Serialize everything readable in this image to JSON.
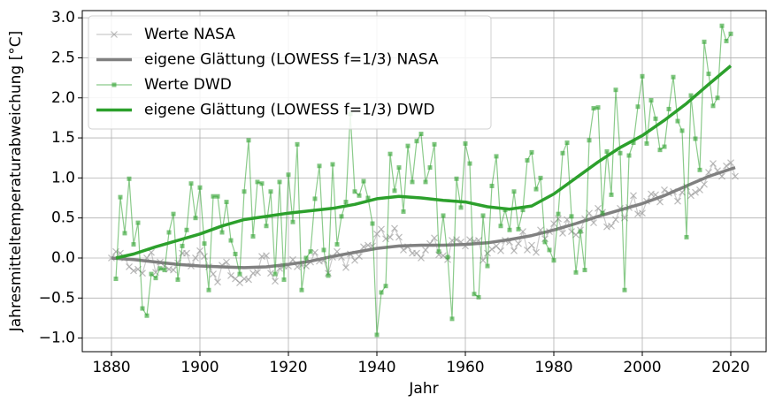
{
  "chart_data": {
    "type": "line",
    "xlabel": "Jahr",
    "ylabel": "Jahresmitteltemperaturabweichung [°C]",
    "xlim": [
      1873.4,
      2028
    ],
    "ylim": [
      -1.17,
      3.09
    ],
    "xticks": [
      1880,
      1900,
      1920,
      1940,
      1960,
      1980,
      2000,
      2020
    ],
    "yticks": [
      {
        "value": -1.0,
        "label": "−1.0"
      },
      {
        "value": -0.5,
        "label": "−0.5"
      },
      {
        "value": 0.0,
        "label": "0.0"
      },
      {
        "value": 0.5,
        "label": "0.5"
      },
      {
        "value": 1.0,
        "label": "1.0"
      },
      {
        "value": 1.5,
        "label": "1.5"
      },
      {
        "value": 2.0,
        "label": "2.0"
      },
      {
        "value": 2.5,
        "label": "2.5"
      },
      {
        "value": 3.0,
        "label": "3.0"
      }
    ],
    "grid": true,
    "legend": "upper left",
    "series": [
      {
        "name": "Werte NASA",
        "color": "#a0a0a0",
        "marker": "x",
        "x": [
          1880,
          1881,
          1882,
          1883,
          1884,
          1885,
          1886,
          1887,
          1888,
          1889,
          1890,
          1891,
          1892,
          1893,
          1894,
          1895,
          1896,
          1897,
          1898,
          1899,
          1900,
          1901,
          1902,
          1903,
          1904,
          1905,
          1906,
          1907,
          1908,
          1909,
          1910,
          1911,
          1912,
          1913,
          1914,
          1915,
          1916,
          1917,
          1918,
          1919,
          1920,
          1921,
          1922,
          1923,
          1924,
          1925,
          1926,
          1927,
          1928,
          1929,
          1930,
          1931,
          1932,
          1933,
          1934,
          1935,
          1936,
          1937,
          1938,
          1939,
          1940,
          1941,
          1942,
          1943,
          1944,
          1945,
          1946,
          1947,
          1948,
          1949,
          1950,
          1951,
          1952,
          1953,
          1954,
          1955,
          1956,
          1957,
          1958,
          1959,
          1960,
          1961,
          1962,
          1963,
          1964,
          1965,
          1966,
          1967,
          1968,
          1969,
          1970,
          1971,
          1972,
          1973,
          1974,
          1975,
          1976,
          1977,
          1978,
          1979,
          1980,
          1981,
          1982,
          1983,
          1984,
          1985,
          1986,
          1987,
          1988,
          1989,
          1990,
          1991,
          1992,
          1993,
          1994,
          1995,
          1996,
          1997,
          1998,
          1999,
          2000,
          2001,
          2002,
          2003,
          2004,
          2005,
          2006,
          2007,
          2008,
          2009,
          2010,
          2011,
          2012,
          2013,
          2014,
          2015,
          2016,
          2017,
          2018,
          2019,
          2020,
          2021
        ],
        "values": [
          0.0,
          0.08,
          0.06,
          0.0,
          -0.11,
          -0.16,
          -0.14,
          -0.19,
          0.0,
          0.07,
          -0.18,
          -0.05,
          -0.1,
          -0.14,
          -0.15,
          -0.06,
          0.06,
          0.06,
          -0.1,
          0.0,
          0.09,
          0.02,
          -0.11,
          -0.2,
          -0.3,
          -0.09,
          -0.05,
          -0.22,
          -0.26,
          -0.31,
          -0.26,
          -0.27,
          -0.19,
          -0.18,
          0.02,
          0.03,
          -0.19,
          -0.29,
          -0.13,
          -0.1,
          -0.1,
          -0.02,
          -0.11,
          -0.09,
          -0.1,
          -0.05,
          0.07,
          -0.04,
          -0.03,
          -0.19,
          0.01,
          0.08,
          0.01,
          -0.12,
          0.05,
          -0.03,
          0.02,
          0.14,
          0.16,
          0.15,
          0.3,
          0.36,
          0.24,
          0.26,
          0.37,
          0.26,
          0.1,
          0.14,
          0.06,
          0.06,
          0.0,
          0.1,
          0.18,
          0.25,
          0.04,
          0.03,
          -0.02,
          0.22,
          0.23,
          0.2,
          0.15,
          0.23,
          0.21,
          0.22,
          -0.03,
          0.06,
          0.11,
          0.15,
          0.09,
          0.22,
          0.2,
          0.09,
          0.18,
          0.33,
          0.1,
          0.16,
          0.07,
          0.35,
          0.24,
          0.33,
          0.43,
          0.49,
          0.31,
          0.48,
          0.33,
          0.29,
          0.35,
          0.49,
          0.56,
          0.44,
          0.62,
          0.57,
          0.39,
          0.4,
          0.48,
          0.62,
          0.5,
          0.63,
          0.78,
          0.55,
          0.56,
          0.71,
          0.8,
          0.79,
          0.7,
          0.85,
          0.81,
          0.83,
          0.71,
          0.82,
          0.89,
          0.78,
          0.82,
          0.85,
          0.92,
          1.07,
          1.18,
          1.09,
          1.02,
          1.15,
          1.19,
          1.02
        ]
      },
      {
        "name": "eigene Glättung (LOWESS f=1/3) NASA",
        "color": "#808080",
        "marker": "none",
        "x": [
          1880,
          1885,
          1890,
          1895,
          1900,
          1905,
          1910,
          1915,
          1920,
          1925,
          1930,
          1935,
          1940,
          1945,
          1950,
          1955,
          1960,
          1965,
          1970,
          1975,
          1980,
          1985,
          1990,
          1995,
          2000,
          2005,
          2010,
          2015,
          2021
        ],
        "values": [
          0.0,
          -0.02,
          -0.05,
          -0.08,
          -0.1,
          -0.11,
          -0.12,
          -0.11,
          -0.08,
          -0.04,
          0.02,
          0.07,
          0.12,
          0.15,
          0.16,
          0.16,
          0.17,
          0.19,
          0.23,
          0.28,
          0.35,
          0.43,
          0.52,
          0.6,
          0.68,
          0.78,
          0.9,
          1.02,
          1.13
        ]
      },
      {
        "name": "Werte DWD",
        "color": "#2ca02c",
        "marker": "square",
        "x": [
          1881,
          1882,
          1883,
          1884,
          1885,
          1886,
          1887,
          1888,
          1889,
          1890,
          1891,
          1892,
          1893,
          1894,
          1895,
          1896,
          1897,
          1898,
          1899,
          1900,
          1901,
          1902,
          1903,
          1904,
          1905,
          1906,
          1907,
          1908,
          1909,
          1910,
          1911,
          1912,
          1913,
          1914,
          1915,
          1916,
          1917,
          1918,
          1919,
          1920,
          1921,
          1922,
          1923,
          1924,
          1925,
          1926,
          1927,
          1928,
          1929,
          1930,
          1931,
          1932,
          1933,
          1934,
          1935,
          1936,
          1937,
          1938,
          1939,
          1940,
          1941,
          1942,
          1943,
          1944,
          1945,
          1946,
          1947,
          1948,
          1949,
          1950,
          1951,
          1952,
          1953,
          1954,
          1955,
          1956,
          1957,
          1958,
          1959,
          1960,
          1961,
          1962,
          1963,
          1964,
          1965,
          1966,
          1967,
          1968,
          1969,
          1970,
          1971,
          1972,
          1973,
          1974,
          1975,
          1976,
          1977,
          1978,
          1979,
          1980,
          1981,
          1982,
          1983,
          1984,
          1985,
          1986,
          1987,
          1988,
          1989,
          1990,
          1991,
          1992,
          1993,
          1994,
          1995,
          1996,
          1997,
          1998,
          1999,
          2000,
          2001,
          2002,
          2003,
          2004,
          2005,
          2006,
          2007,
          2008,
          2009,
          2010,
          2011,
          2012,
          2013,
          2014,
          2015,
          2016,
          2017,
          2018,
          2019,
          2020
        ],
        "values": [
          -0.26,
          0.76,
          0.31,
          0.99,
          0.17,
          0.44,
          -0.63,
          -0.72,
          -0.2,
          -0.25,
          -0.13,
          -0.15,
          0.32,
          0.55,
          -0.27,
          0.15,
          0.35,
          0.93,
          0.5,
          0.88,
          0.18,
          -0.4,
          0.77,
          0.77,
          0.32,
          0.7,
          0.22,
          0.05,
          -0.2,
          0.83,
          1.47,
          0.27,
          0.95,
          0.93,
          0.4,
          0.83,
          -0.2,
          0.95,
          -0.27,
          1.04,
          0.45,
          1.42,
          -0.4,
          0.0,
          0.08,
          0.74,
          1.15,
          0.1,
          -0.22,
          1.17,
          0.17,
          0.52,
          0.7,
          1.8,
          0.83,
          0.78,
          0.96,
          0.75,
          0.43,
          -0.96,
          -0.43,
          -0.35,
          1.3,
          0.84,
          1.13,
          0.58,
          1.4,
          0.95,
          1.46,
          1.55,
          0.95,
          1.13,
          1.42,
          0.08,
          0.53,
          0.01,
          -0.76,
          0.99,
          0.63,
          1.43,
          1.18,
          -0.45,
          -0.49,
          0.53,
          -0.1,
          0.9,
          1.27,
          0.4,
          0.6,
          0.35,
          0.83,
          0.36,
          0.6,
          1.22,
          1.32,
          0.86,
          1.0,
          0.2,
          0.1,
          -0.03,
          0.55,
          1.31,
          1.44,
          0.52,
          -0.18,
          0.33,
          -0.15,
          1.47,
          1.87,
          1.88,
          0.56,
          1.33,
          0.79,
          2.1,
          1.31,
          -0.4,
          1.28,
          1.44,
          1.89,
          2.27,
          1.43,
          1.97,
          1.74,
          1.35,
          1.39,
          1.86,
          2.26,
          1.71,
          1.59,
          0.26,
          2.03,
          1.49,
          1.1,
          2.7,
          2.3,
          1.9,
          2.0,
          2.9,
          2.71,
          2.8
        ]
      },
      {
        "name": "eigene Glättung (LOWESS f=1/3) DWD",
        "color": "#2ca02c",
        "marker": "none",
        "x": [
          1881,
          1885,
          1890,
          1895,
          1900,
          1905,
          1910,
          1915,
          1920,
          1925,
          1930,
          1935,
          1940,
          1945,
          1950,
          1955,
          1960,
          1965,
          1970,
          1975,
          1980,
          1985,
          1990,
          1995,
          2000,
          2005,
          2010,
          2015,
          2020
        ],
        "values": [
          0.0,
          0.05,
          0.14,
          0.22,
          0.3,
          0.4,
          0.48,
          0.52,
          0.56,
          0.59,
          0.62,
          0.67,
          0.74,
          0.77,
          0.75,
          0.72,
          0.7,
          0.64,
          0.61,
          0.65,
          0.8,
          1.0,
          1.2,
          1.38,
          1.53,
          1.72,
          1.93,
          2.17,
          2.4
        ]
      }
    ]
  }
}
